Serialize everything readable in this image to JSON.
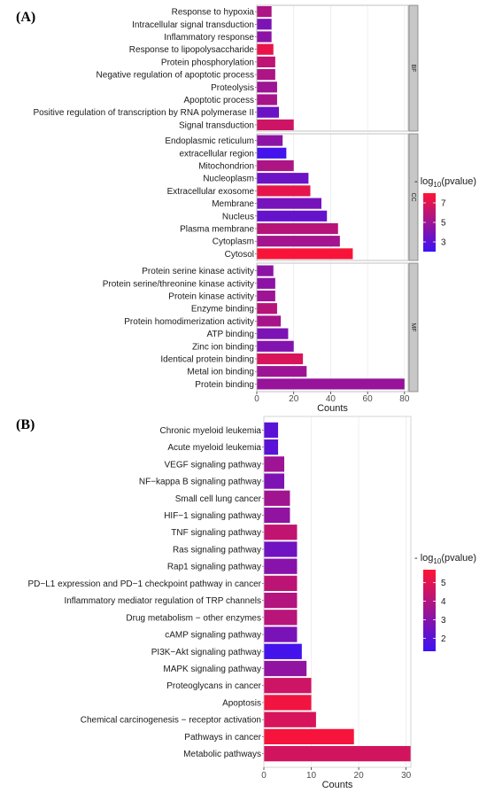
{
  "chart_data": [
    {
      "panel_label": "(A)",
      "type": "bar",
      "orientation": "horizontal",
      "xlabel": "Counts",
      "xlim": [
        0,
        82
      ],
      "xticks": [
        0,
        20,
        40,
        60,
        80
      ],
      "legend": {
        "title_prefix": "- log",
        "title_sub": "10",
        "title_suffix": "(pvalue)",
        "range": [
          2,
          8
        ],
        "ticks": [
          3,
          5,
          7
        ],
        "colors": [
          "#3b13f5",
          "#ff1433"
        ]
      },
      "facets": [
        {
          "name": "BF",
          "bars": [
            {
              "label": "Response to hypoxia",
              "count": 8,
              "log10p": 5.5
            },
            {
              "label": "Intracellular signal transduction",
              "count": 8,
              "log10p": 4.0
            },
            {
              "label": "Inflammatory response",
              "count": 8,
              "log10p": 4.5
            },
            {
              "label": "Response to lipopolysaccharide",
              "count": 9,
              "log10p": 7.3
            },
            {
              "label": "Protein phosphorylation",
              "count": 10,
              "log10p": 6.0
            },
            {
              "label": "Negative regulation of apoptotic process",
              "count": 10,
              "log10p": 5.5
            },
            {
              "label": "Proteolysis",
              "count": 11,
              "log10p": 5.0
            },
            {
              "label": "Apoptotic process",
              "count": 11,
              "log10p": 5.3
            },
            {
              "label": "Positive regulation of transcription by RNA polymerase II",
              "count": 12,
              "log10p": 3.5
            },
            {
              "label": "Signal transduction",
              "count": 20,
              "log10p": 6.5
            }
          ]
        },
        {
          "name": "CC",
          "bars": [
            {
              "label": "Endoplasmic reticulum",
              "count": 14,
              "log10p": 4.5
            },
            {
              "label": "extracellular region",
              "count": 16,
              "log10p": 2.3
            },
            {
              "label": "Mitochondrion",
              "count": 20,
              "log10p": 5.5
            },
            {
              "label": "Nucleoplasm",
              "count": 28,
              "log10p": 3.5
            },
            {
              "label": "Extracellular exosome",
              "count": 29,
              "log10p": 7.2
            },
            {
              "label": "Membrane",
              "count": 35,
              "log10p": 3.8
            },
            {
              "label": "Nucleus",
              "count": 38,
              "log10p": 3.3
            },
            {
              "label": "Plasma membrane",
              "count": 44,
              "log10p": 5.8
            },
            {
              "label": "Cytoplasm",
              "count": 45,
              "log10p": 5.2
            },
            {
              "label": "Cytosol",
              "count": 52,
              "log10p": 7.8
            }
          ]
        },
        {
          "name": "MF",
          "bars": [
            {
              "label": "Protein serine kinase activity",
              "count": 9,
              "log10p": 4.5
            },
            {
              "label": "Protein serine/threonine kinase activity",
              "count": 10,
              "log10p": 4.5
            },
            {
              "label": "Protein kinase activity",
              "count": 10,
              "log10p": 5.0
            },
            {
              "label": "Enzyme binding",
              "count": 11,
              "log10p": 5.8
            },
            {
              "label": "Protein homodimerization activity",
              "count": 13,
              "log10p": 5.3
            },
            {
              "label": "ATP binding",
              "count": 17,
              "log10p": 4.0
            },
            {
              "label": "Zinc ion binding",
              "count": 20,
              "log10p": 4.2
            },
            {
              "label": "Identical protein binding",
              "count": 25,
              "log10p": 6.8
            },
            {
              "label": "Metal ion binding",
              "count": 27,
              "log10p": 5.0
            },
            {
              "label": "Protein binding",
              "count": 80,
              "log10p": 4.8
            }
          ]
        }
      ]
    },
    {
      "panel_label": "(B)",
      "type": "bar",
      "orientation": "horizontal",
      "xlabel": "Counts",
      "xlim": [
        0,
        31
      ],
      "xticks": [
        0,
        10,
        20,
        30
      ],
      "legend": {
        "title_prefix": "- log",
        "title_sub": "10",
        "title_suffix": "(pvalue)",
        "range": [
          1.3,
          5.7
        ],
        "ticks": [
          2,
          3,
          4,
          5
        ],
        "colors": [
          "#3b13f5",
          "#ff1433"
        ]
      },
      "bars": [
        {
          "label": "Chronic myeloid leukemia",
          "count": 3,
          "log10p": 2.0
        },
        {
          "label": "Acute myeloid leukemia",
          "count": 3,
          "log10p": 2.0
        },
        {
          "label": "VEGF signaling pathway",
          "count": 4.3,
          "log10p": 3.5
        },
        {
          "label": "NF−kappa B signaling pathway",
          "count": 4.3,
          "log10p": 2.8
        },
        {
          "label": "Small cell lung cancer",
          "count": 5.5,
          "log10p": 3.6
        },
        {
          "label": "HIF−1 signaling pathway",
          "count": 5.5,
          "log10p": 3.2
        },
        {
          "label": "TNF signaling pathway",
          "count": 7,
          "log10p": 4.3
        },
        {
          "label": "Ras signaling pathway",
          "count": 7,
          "log10p": 2.5
        },
        {
          "label": "Rap1 signaling pathway",
          "count": 7,
          "log10p": 3.0
        },
        {
          "label": "PD−L1 expression and PD−1 checkpoint pathway in cancer",
          "count": 7,
          "log10p": 4.2
        },
        {
          "label": "Inflammatory mediator regulation of TRP channels",
          "count": 7,
          "log10p": 4.0
        },
        {
          "label": "Drug metabolism − other enzymes",
          "count": 7,
          "log10p": 4.1
        },
        {
          "label": "cAMP signaling pathway",
          "count": 7,
          "log10p": 2.7
        },
        {
          "label": "PI3K−Akt signaling pathway",
          "count": 8,
          "log10p": 1.5
        },
        {
          "label": "MAPK signaling pathway",
          "count": 9,
          "log10p": 3.2
        },
        {
          "label": "Proteoglycans in cancer",
          "count": 10,
          "log10p": 4.6
        },
        {
          "label": "Apoptosis",
          "count": 10,
          "log10p": 5.4
        },
        {
          "label": "Chemical carcinogenesis − receptor activation",
          "count": 11,
          "log10p": 4.8
        },
        {
          "label": "Pathways in cancer",
          "count": 19,
          "log10p": 5.5
        },
        {
          "label": "Metabolic pathways",
          "count": 31,
          "log10p": 4.7
        }
      ]
    }
  ]
}
